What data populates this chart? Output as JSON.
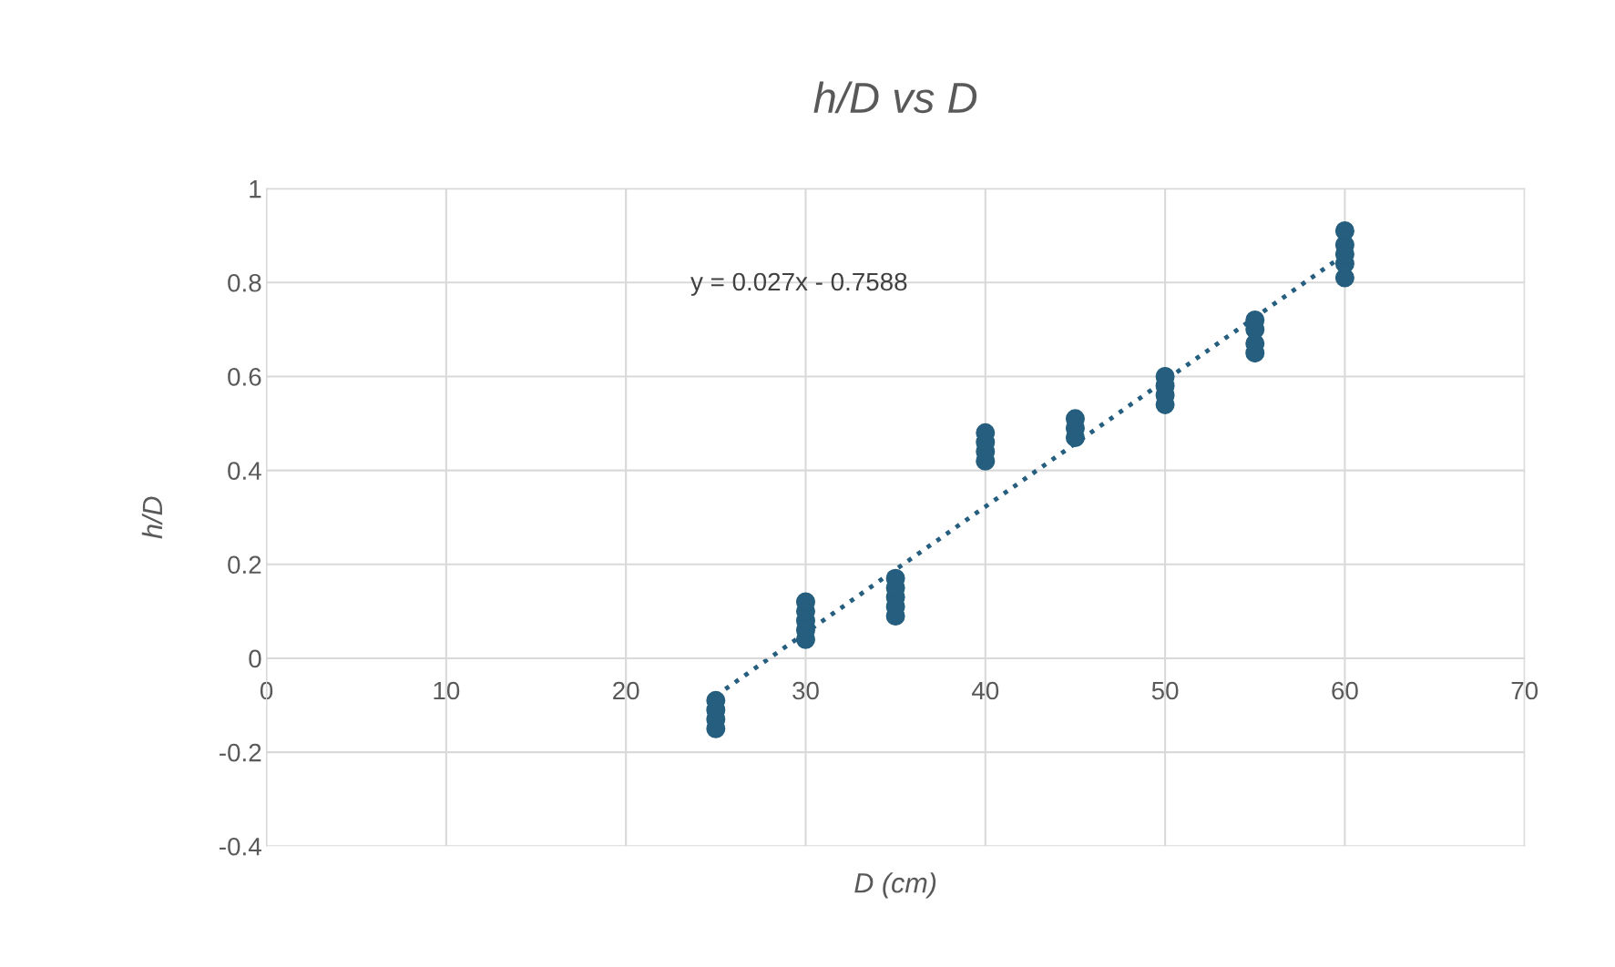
{
  "chart_data": {
    "type": "scatter",
    "title": "h/D vs D",
    "xlabel": "D (cm)",
    "ylabel": "h/D",
    "series": [
      {
        "color": "#255e7e",
        "x": [
          25,
          25,
          25,
          25,
          30,
          30,
          30,
          30,
          30,
          35,
          35,
          35,
          35,
          35,
          40,
          40,
          40,
          40,
          45,
          45,
          45,
          50,
          50,
          50,
          50,
          55,
          55,
          55,
          55,
          60,
          60,
          60,
          60,
          60
        ],
        "values": [
          -0.09,
          -0.11,
          -0.13,
          -0.15,
          0.04,
          0.06,
          0.08,
          0.1,
          0.12,
          0.09,
          0.11,
          0.13,
          0.15,
          0.17,
          0.42,
          0.44,
          0.46,
          0.48,
          0.47,
          0.49,
          0.51,
          0.54,
          0.56,
          0.58,
          0.6,
          0.65,
          0.67,
          0.7,
          0.72,
          0.81,
          0.84,
          0.86,
          0.88,
          0.91
        ]
      },
      {
        "type": "line",
        "color": "#255e7e",
        "line_style": "dotted",
        "marker": "none",
        "x": [
          25,
          60
        ],
        "values": [
          -0.08,
          0.86
        ]
      }
    ],
    "annotations": [
      "y = 0.027x - 0.7588"
    ],
    "xlim": [
      0,
      70
    ],
    "xticks": [
      0,
      10,
      20,
      30,
      40,
      50,
      60,
      70
    ],
    "ylim": [
      -0.4,
      1
    ],
    "yticks": [
      -0.4,
      -0.2,
      0,
      0.2,
      0.4,
      0.6,
      0.8,
      1
    ],
    "grid": true,
    "marker": "circle"
  }
}
